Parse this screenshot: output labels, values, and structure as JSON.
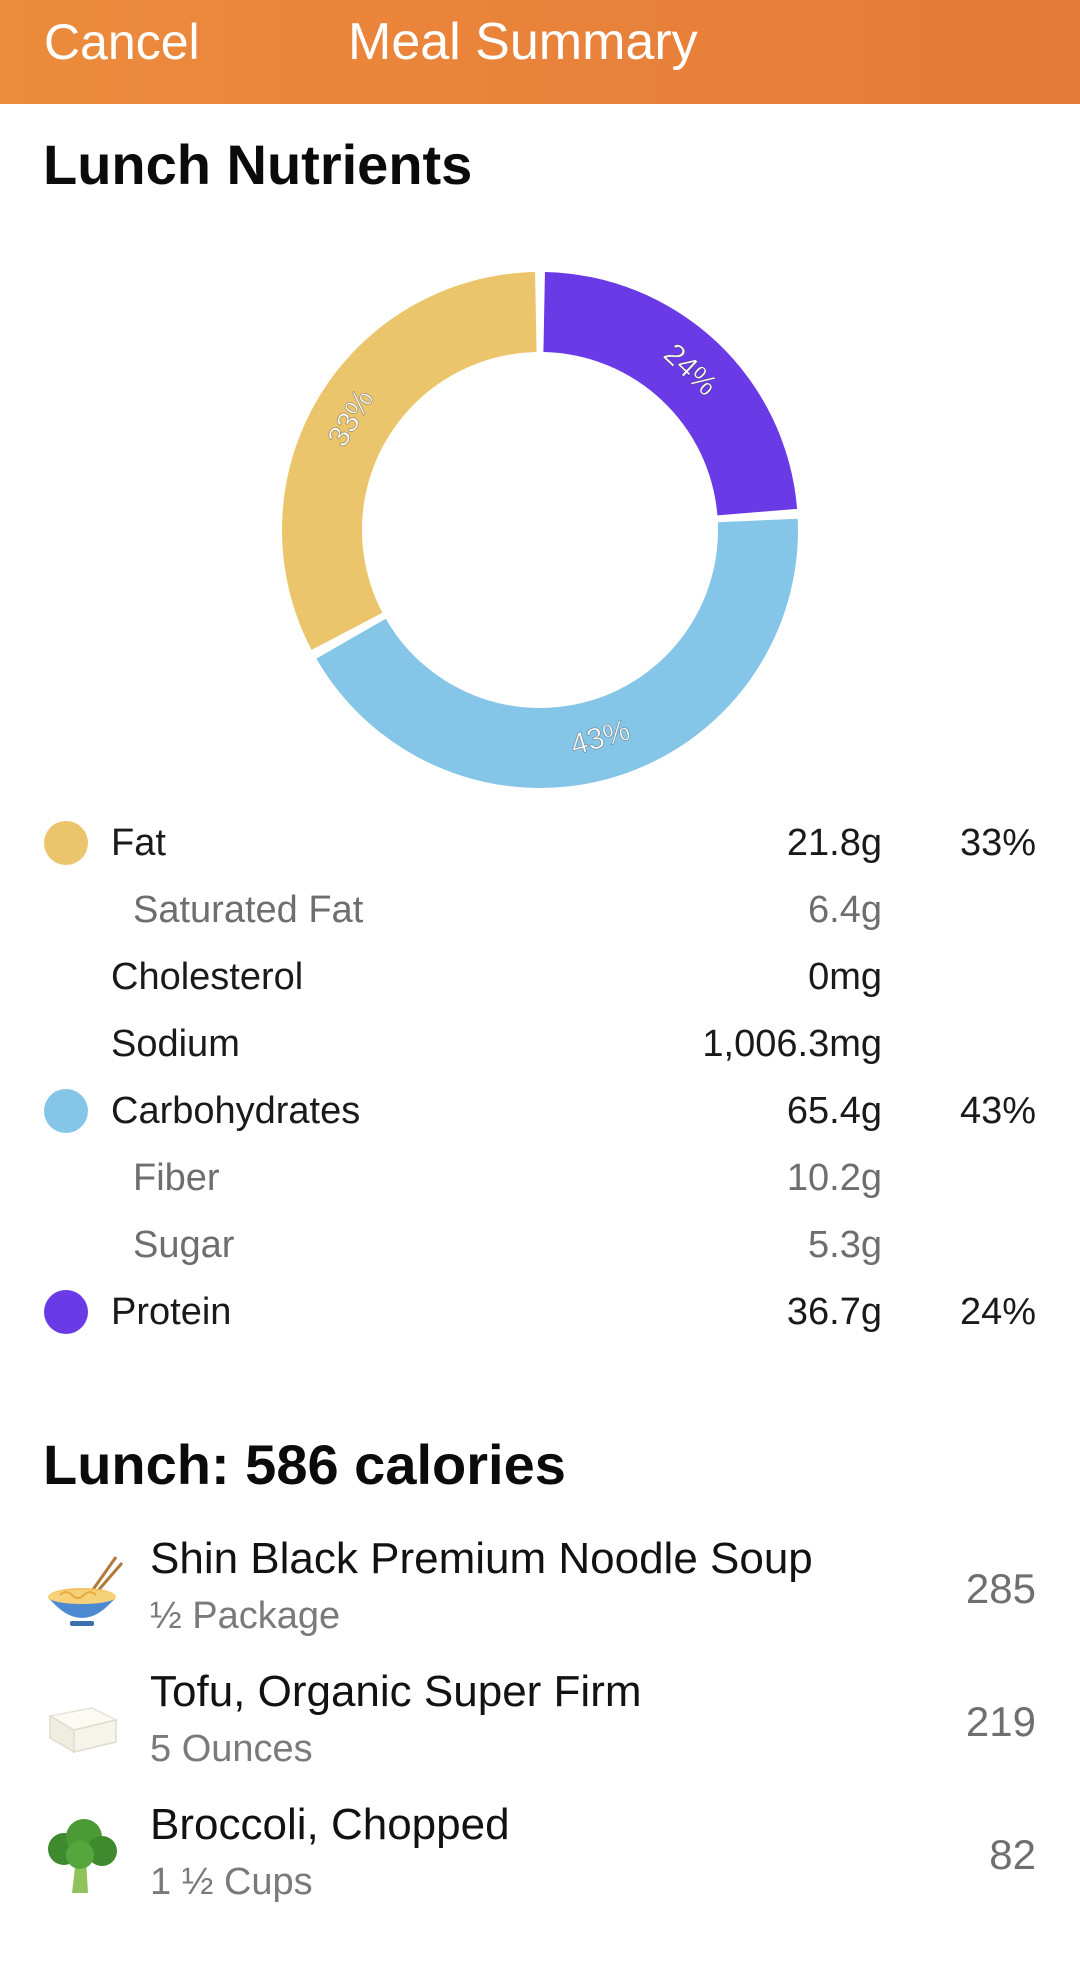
{
  "header": {
    "cancel_label": "Cancel",
    "title": "Meal Summary"
  },
  "nutrients": {
    "title": "Lunch Nutrients",
    "rows": [
      {
        "label": "Fat",
        "value": "21.8g",
        "percent": "33%",
        "color": "#ebc56b"
      },
      {
        "label": "Saturated Fat",
        "value": "6.4g"
      },
      {
        "label": "Cholesterol",
        "value": "0mg"
      },
      {
        "label": "Sodium",
        "value": "1,006.3mg"
      },
      {
        "label": "Carbohydrates",
        "value": "65.4g",
        "percent": "43%",
        "color": "#85c6e8"
      },
      {
        "label": "Fiber",
        "value": "10.2g"
      },
      {
        "label": "Sugar",
        "value": "5.3g"
      },
      {
        "label": "Protein",
        "value": "36.7g",
        "percent": "24%",
        "color": "#6a3ae6"
      }
    ]
  },
  "chart_data": {
    "type": "pie",
    "categories": [
      "Protein",
      "Carbohydrates",
      "Fat"
    ],
    "values": [
      24,
      43,
      33
    ],
    "labels": [
      "24%",
      "43%",
      "33%"
    ],
    "colors": [
      "#6a3ae6",
      "#85c6e8",
      "#ebc56b"
    ]
  },
  "meal": {
    "title": "Lunch: 586 calories",
    "items": [
      {
        "name": "Shin Black Premium Noodle Soup",
        "quantity": "½ Package",
        "calories": "285",
        "icon": "noodle-bowl-icon"
      },
      {
        "name": "Tofu, Organic Super Firm",
        "quantity": "5 Ounces",
        "calories": "219",
        "icon": "tofu-icon"
      },
      {
        "name": "Broccoli, Chopped",
        "quantity": "1 ½ Cups",
        "calories": "82",
        "icon": "broccoli-icon"
      }
    ]
  }
}
